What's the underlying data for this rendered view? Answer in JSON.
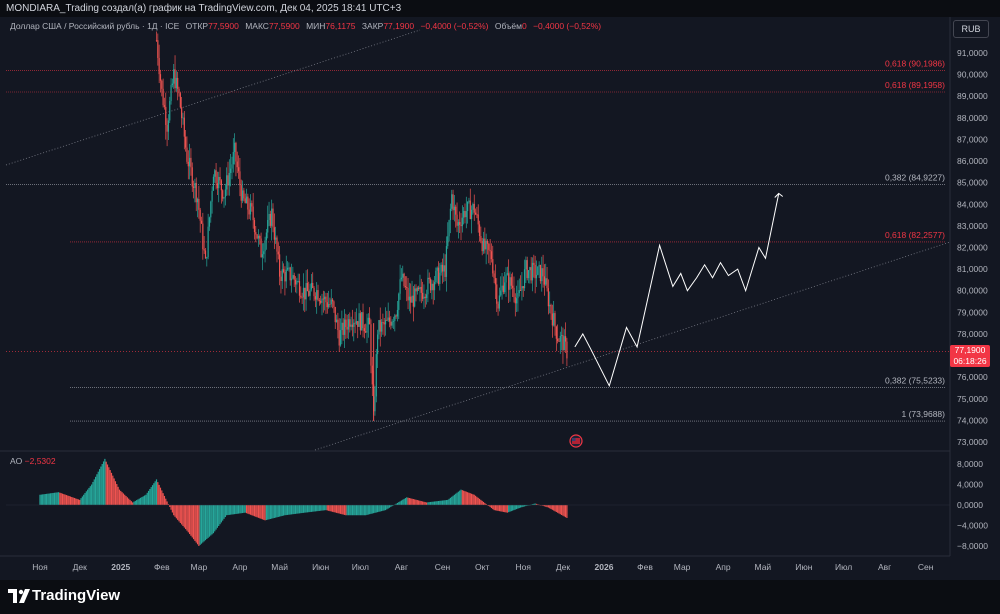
{
  "publish_info": "MONDIARA_Trading создал(а) график на TradingView.com, Дек 04, 2025 18:41 UTC+3",
  "legend": {
    "symbol": "Доллар США / Российский рубль · 1Д · ICE",
    "open_label": "ОТКР",
    "open": "77,5900",
    "high_label": "МАКС",
    "high": "77,5900",
    "low_label": "МИН",
    "low": "76,1175",
    "close_label": "ЗАКР",
    "close": "77,1900",
    "change": "−0,4000 (−0,52%)",
    "volume_label": "Объём",
    "volume": "0",
    "volume_change": "−0,4000 (−0,52%)"
  },
  "currency_badge": "RUB",
  "price_tag": {
    "price": "77,1900",
    "countdown": "06:18:26"
  },
  "ao_legend": {
    "label": "AO",
    "value": "−2,5302"
  },
  "branding": "TradingView",
  "colors": {
    "up": "#26a69a",
    "down": "#ef5350",
    "fib": "#f23645",
    "fib_neutral": "#b2b5be",
    "projection": "#ffffff",
    "trendline": "#787b86"
  },
  "chart_data": [
    {
      "type": "candlestick",
      "title": "Доллар США / Российский рубль · 1Д · ICE",
      "y_unit": "RUB",
      "ylim": [
        73.0,
        91.5
      ],
      "y_ticks": [
        "91,0000",
        "90,0000",
        "89,0000",
        "88,0000",
        "87,0000",
        "86,0000",
        "85,0000",
        "84,0000",
        "83,0000",
        "82,0000",
        "81,0000",
        "80,0000",
        "79,0000",
        "78,0000",
        "77,0000",
        "76,0000",
        "75,0000",
        "74,0000",
        "73,0000"
      ],
      "x_ticks": [
        "Ноя",
        "Дек",
        "2025",
        "Фев",
        "Мар",
        "Апр",
        "Май",
        "Июн",
        "Июл",
        "Авг",
        "Сен",
        "Окт",
        "Ноя",
        "Дек",
        "2026",
        "Фев",
        "Мар",
        "Апр",
        "Май",
        "Июн",
        "Июл",
        "Авг",
        "Сен"
      ],
      "price_path": [
        {
          "x": "2025-01-28",
          "y": 91.6
        },
        {
          "x": "2025-02-01",
          "y": 89.2
        },
        {
          "x": "2025-02-05",
          "y": 87.7
        },
        {
          "x": "2025-02-10",
          "y": 90.0
        },
        {
          "x": "2025-02-14",
          "y": 89.0
        },
        {
          "x": "2025-02-20",
          "y": 86.2
        },
        {
          "x": "2025-02-28",
          "y": 84.3
        },
        {
          "x": "2025-03-06",
          "y": 81.2
        },
        {
          "x": "2025-03-12",
          "y": 85.6
        },
        {
          "x": "2025-03-20",
          "y": 84.5
        },
        {
          "x": "2025-03-28",
          "y": 86.4
        },
        {
          "x": "2025-04-03",
          "y": 84.2
        },
        {
          "x": "2025-04-10",
          "y": 83.6
        },
        {
          "x": "2025-04-17",
          "y": 81.8
        },
        {
          "x": "2025-04-25",
          "y": 83.6
        },
        {
          "x": "2025-05-01",
          "y": 80.8
        },
        {
          "x": "2025-05-10",
          "y": 80.7
        },
        {
          "x": "2025-05-20",
          "y": 79.9
        },
        {
          "x": "2025-05-29",
          "y": 80.0
        },
        {
          "x": "2025-06-05",
          "y": 79.5
        },
        {
          "x": "2025-06-10",
          "y": 79.3
        },
        {
          "x": "2025-06-15",
          "y": 77.9
        },
        {
          "x": "2025-06-24",
          "y": 78.8
        },
        {
          "x": "2025-07-01",
          "y": 78.6
        },
        {
          "x": "2025-07-08",
          "y": 78.3
        },
        {
          "x": "2025-07-11",
          "y": 74.0
        },
        {
          "x": "2025-07-14",
          "y": 78.2
        },
        {
          "x": "2025-07-22",
          "y": 78.5
        },
        {
          "x": "2025-07-28",
          "y": 79.1
        },
        {
          "x": "2025-08-01",
          "y": 80.6
        },
        {
          "x": "2025-08-07",
          "y": 79.5
        },
        {
          "x": "2025-08-14",
          "y": 79.8
        },
        {
          "x": "2025-08-22",
          "y": 80.3
        },
        {
          "x": "2025-08-29",
          "y": 80.7
        },
        {
          "x": "2025-09-03",
          "y": 81.0
        },
        {
          "x": "2025-09-08",
          "y": 84.4
        },
        {
          "x": "2025-09-12",
          "y": 83.0
        },
        {
          "x": "2025-09-18",
          "y": 83.7
        },
        {
          "x": "2025-09-25",
          "y": 83.8
        },
        {
          "x": "2025-10-02",
          "y": 82.0
        },
        {
          "x": "2025-10-08",
          "y": 81.6
        },
        {
          "x": "2025-10-13",
          "y": 79.4
        },
        {
          "x": "2025-10-18",
          "y": 80.6
        },
        {
          "x": "2025-10-24",
          "y": 80.2
        },
        {
          "x": "2025-10-28",
          "y": 79.5
        },
        {
          "x": "2025-11-03",
          "y": 81.0
        },
        {
          "x": "2025-11-10",
          "y": 80.8
        },
        {
          "x": "2025-11-16",
          "y": 80.8
        },
        {
          "x": "2025-11-21",
          "y": 79.3
        },
        {
          "x": "2025-11-27",
          "y": 77.9
        },
        {
          "x": "2025-12-01",
          "y": 77.6
        },
        {
          "x": "2025-12-04",
          "y": 77.19
        }
      ],
      "projection_path": [
        {
          "x": "2025-12-10",
          "y": 77.4
        },
        {
          "x": "2025-12-16",
          "y": 78.0
        },
        {
          "x": "2025-12-22",
          "y": 77.3
        },
        {
          "x": "2026-01-05",
          "y": 75.6
        },
        {
          "x": "2026-01-18",
          "y": 78.3
        },
        {
          "x": "2026-01-26",
          "y": 77.4
        },
        {
          "x": "2026-02-12",
          "y": 82.1
        },
        {
          "x": "2026-02-22",
          "y": 80.2
        },
        {
          "x": "2026-02-28",
          "y": 80.8
        },
        {
          "x": "2026-03-05",
          "y": 80.0
        },
        {
          "x": "2026-03-12",
          "y": 80.6
        },
        {
          "x": "2026-03-18",
          "y": 81.2
        },
        {
          "x": "2026-03-24",
          "y": 80.6
        },
        {
          "x": "2026-03-30",
          "y": 81.3
        },
        {
          "x": "2026-04-05",
          "y": 80.7
        },
        {
          "x": "2026-04-12",
          "y": 81.0
        },
        {
          "x": "2026-04-18",
          "y": 80.0
        },
        {
          "x": "2026-04-28",
          "y": 82.0
        },
        {
          "x": "2026-05-03",
          "y": 81.5
        },
        {
          "x": "2026-05-13",
          "y": 84.5
        }
      ],
      "fib_levels": [
        {
          "ratio": "0,618",
          "value": 90.1986,
          "label": "0,618 (90,1986)",
          "color": "#f23645"
        },
        {
          "ratio": "0,618",
          "value": 89.1958,
          "label": "0,618 (89,1958)",
          "color": "#f23645"
        },
        {
          "ratio": "0,382",
          "value": 84.9227,
          "label": "0,382 (84,9227)",
          "color": "#b2b5be"
        },
        {
          "ratio": "0,618",
          "value": 82.2577,
          "label": "0,618 (82,2577)",
          "color": "#f23645"
        },
        {
          "ratio": "0,382",
          "value": 75.5233,
          "label": "0,382 (75,5233)",
          "color": "#b2b5be"
        },
        {
          "ratio": "1",
          "value": 73.9688,
          "label": "1 (73,9688)",
          "color": "#b2b5be"
        }
      ],
      "last_price": 77.19,
      "last_price_label": "77,1900"
    },
    {
      "type": "bar",
      "title": "AO",
      "ylim": [
        -9.5,
        10.0
      ],
      "y_ticks": [
        "8,0000",
        "4,0000",
        "0,0000",
        "−4,0000",
        "−8,0000"
      ],
      "values_description": "Awesome Oscillator histogram",
      "series": [
        {
          "x": "2024-11-01",
          "y": 2.0
        },
        {
          "x": "2024-11-15",
          "y": 2.5
        },
        {
          "x": "2024-12-01",
          "y": 1.0
        },
        {
          "x": "2024-12-10",
          "y": 4.0
        },
        {
          "x": "2024-12-20",
          "y": 9.0
        },
        {
          "x": "2024-12-31",
          "y": 3.0
        },
        {
          "x": "2025-01-10",
          "y": 0.5
        },
        {
          "x": "2025-01-20",
          "y": 2.0
        },
        {
          "x": "2025-01-28",
          "y": 5.0
        },
        {
          "x": "2025-02-10",
          "y": -2.0
        },
        {
          "x": "2025-02-20",
          "y": -5.0
        },
        {
          "x": "2025-03-01",
          "y": -8.0
        },
        {
          "x": "2025-03-12",
          "y": -5.5
        },
        {
          "x": "2025-03-22",
          "y": -2.0
        },
        {
          "x": "2025-04-05",
          "y": -1.5
        },
        {
          "x": "2025-04-20",
          "y": -3.0
        },
        {
          "x": "2025-05-05",
          "y": -2.0
        },
        {
          "x": "2025-05-20",
          "y": -1.5
        },
        {
          "x": "2025-06-05",
          "y": -1.0
        },
        {
          "x": "2025-06-20",
          "y": -2.0
        },
        {
          "x": "2025-07-05",
          "y": -2.0
        },
        {
          "x": "2025-07-20",
          "y": -1.0
        },
        {
          "x": "2025-08-05",
          "y": 1.5
        },
        {
          "x": "2025-08-20",
          "y": 0.5
        },
        {
          "x": "2025-09-05",
          "y": 1.0
        },
        {
          "x": "2025-09-15",
          "y": 3.0
        },
        {
          "x": "2025-09-25",
          "y": 2.0
        },
        {
          "x": "2025-10-10",
          "y": -1.0
        },
        {
          "x": "2025-10-20",
          "y": -1.5
        },
        {
          "x": "2025-10-30",
          "y": -0.5
        },
        {
          "x": "2025-11-10",
          "y": 0.3
        },
        {
          "x": "2025-11-20",
          "y": -0.5
        },
        {
          "x": "2025-12-04",
          "y": -2.53
        }
      ]
    }
  ]
}
